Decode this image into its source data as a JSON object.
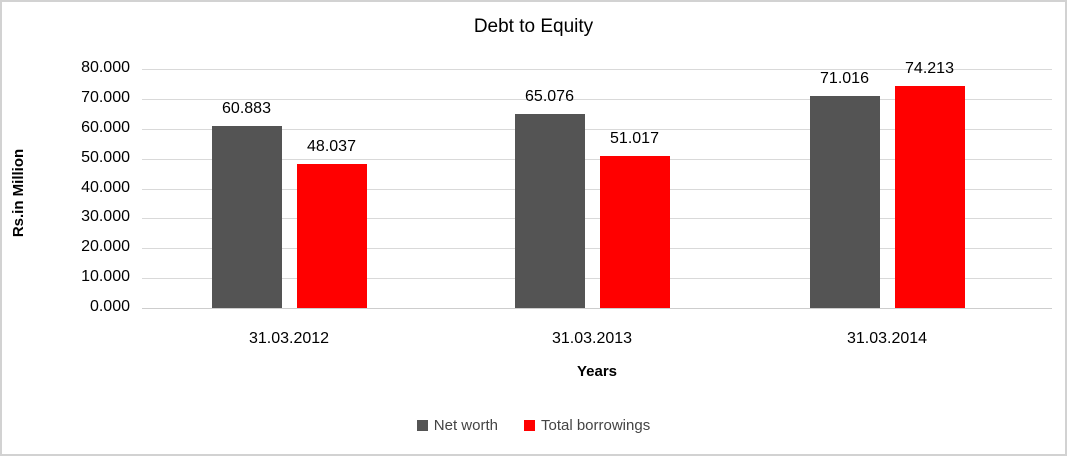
{
  "chart_data": {
    "type": "bar",
    "title": "Debt to Equity",
    "xlabel": "Years",
    "ylabel": "Rs.in Million",
    "categories": [
      "31.03.2012",
      "31.03.2013",
      "31.03.2014"
    ],
    "series": [
      {
        "name": "Net worth",
        "color": "#545454",
        "values": [
          60.883,
          65.076,
          71.016
        ]
      },
      {
        "name": "Total borrowings",
        "color": "#ff0000",
        "values": [
          48.037,
          51.017,
          74.213
        ]
      }
    ],
    "value_label_decimals": 3,
    "ylim": [
      0,
      80
    ],
    "ytick_step": 10,
    "yticks": [
      "0.000",
      "10.000",
      "20.000",
      "30.000",
      "40.000",
      "50.000",
      "60.000",
      "70.000",
      "80.000"
    ],
    "grid": true,
    "legend_position": "bottom",
    "gridline_color": "#d9d9d9",
    "border_color": "#d2d2d2"
  }
}
